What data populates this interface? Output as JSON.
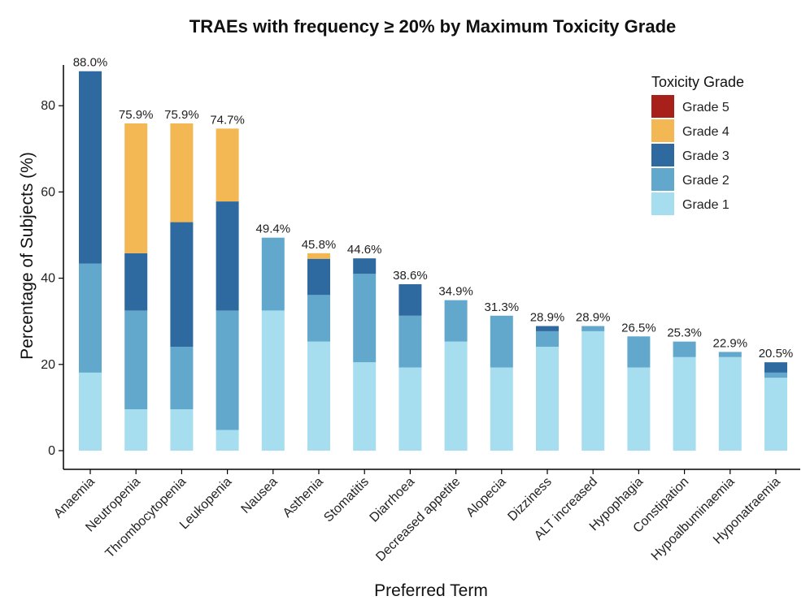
{
  "chart_data": {
    "type": "bar",
    "stacked": true,
    "title": "TRAEs with frequency ≥ 20% by Maximum Toxicity Grade",
    "xlabel": "Preferred Term",
    "ylabel": "Percentage of Subjects (%)",
    "ylim": [
      0,
      93
    ],
    "yticks": [
      0,
      20,
      40,
      60,
      80
    ],
    "grid": false,
    "legend": {
      "title": "Toxicity Grade",
      "position": "top-right",
      "entries": [
        "Grade 5",
        "Grade 4",
        "Grade 3",
        "Grade 2",
        "Grade 1"
      ]
    },
    "categories": [
      "Anaemia",
      "Neutropenia",
      "Thrombocytopenia",
      "Leukopenia",
      "Nausea",
      "Asthenia",
      "Stomatitis",
      "Diarrhoea",
      "Decreased appetite",
      "Alopecia",
      "Dizziness",
      "ALT increased",
      "Hypophagia",
      "Constipation",
      "Hypoalbuminaemia",
      "Hyponatraemia"
    ],
    "totals": [
      "88.0%",
      "75.9%",
      "75.9%",
      "74.7%",
      "49.4%",
      "45.8%",
      "44.6%",
      "38.6%",
      "34.9%",
      "31.3%",
      "28.9%",
      "28.9%",
      "26.5%",
      "25.3%",
      "22.9%",
      "20.5%"
    ],
    "series": [
      {
        "name": "Grade 1",
        "color": "#a6def0",
        "values": [
          18.1,
          9.6,
          9.6,
          4.8,
          32.5,
          25.3,
          20.5,
          19.3,
          25.3,
          19.3,
          24.1,
          27.7,
          19.3,
          21.7,
          21.7,
          16.9
        ]
      },
      {
        "name": "Grade 2",
        "color": "#62a8cd",
        "values": [
          25.3,
          22.9,
          14.5,
          27.7,
          16.9,
          10.8,
          20.5,
          12.0,
          9.6,
          12.0,
          3.6,
          1.2,
          7.2,
          3.6,
          1.2,
          1.2
        ]
      },
      {
        "name": "Grade 3",
        "color": "#2e6a9f",
        "values": [
          44.6,
          13.3,
          28.9,
          25.3,
          0,
          8.4,
          3.6,
          7.3,
          0,
          0,
          1.2,
          0,
          0,
          0,
          0,
          2.4
        ]
      },
      {
        "name": "Grade 4",
        "color": "#f3b853",
        "values": [
          0,
          30.1,
          22.9,
          16.9,
          0,
          1.3,
          0,
          0,
          0,
          0,
          0,
          0,
          0,
          0,
          0,
          0
        ]
      },
      {
        "name": "Grade 5",
        "color": "#a8201a",
        "values": [
          0,
          0,
          0,
          0,
          0,
          0,
          0,
          0,
          0,
          0,
          0,
          0,
          0,
          0,
          0,
          0
        ]
      }
    ]
  }
}
